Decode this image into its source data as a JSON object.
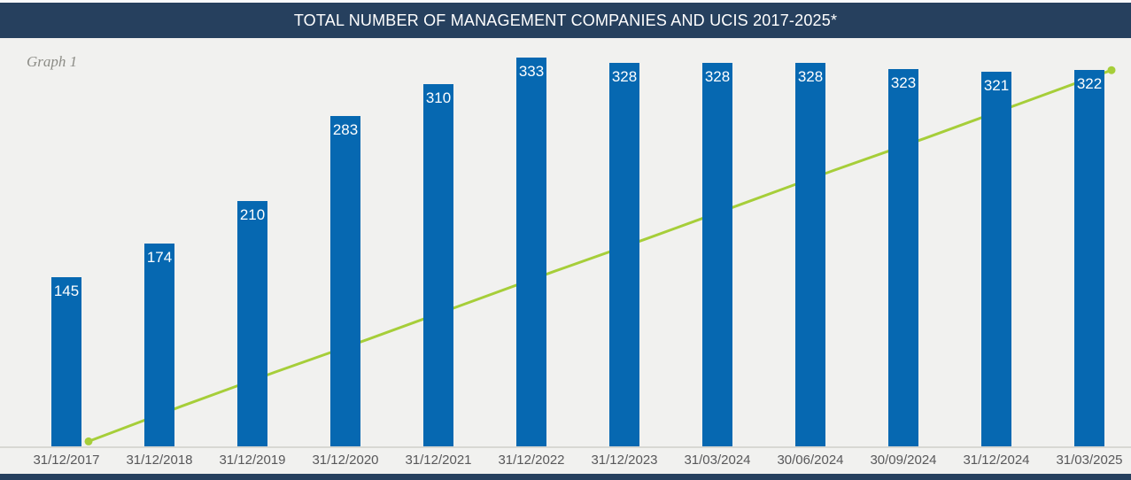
{
  "header": {
    "title": "TOTAL NUMBER OF MANAGEMENT COMPANIES AND UCIS 2017-2025*",
    "graph_label": "Graph 1"
  },
  "colors": {
    "header_bar": "#26405E",
    "footer_bar": "#26405E",
    "bar_fill": "#0668B1",
    "bar_value_text": "#FFFFFF",
    "line": "#A6CE39",
    "chart_background": "#F1F1EF",
    "axis_line": "#D8D8D3",
    "x_label_text": "#58585A",
    "graph_label_text": "#8C8C86"
  },
  "chart_data": {
    "type": "bar",
    "title": "TOTAL NUMBER OF MANAGEMENT COMPANIES AND UCIS 2017-2025*",
    "categories": [
      "31/12/2017",
      "31/12/2018",
      "31/12/2019",
      "31/12/2020",
      "31/12/2021",
      "31/12/2022",
      "31/12/2023",
      "31/03/2024",
      "30/06/2024",
      "30/09/2024",
      "31/12/2024",
      "31/03/2025"
    ],
    "series": [
      {
        "name": "bars",
        "type": "bar",
        "values": [
          145,
          174,
          210,
          283,
          310,
          333,
          328,
          328,
          328,
          323,
          321,
          322
        ],
        "data_labels": true
      },
      {
        "name": "line",
        "type": "line",
        "estimated": true,
        "values": [
          5,
          35,
          64,
          92,
          121,
          150,
          178,
          207,
          236,
          264,
          293,
          322
        ],
        "markers": "start-and-end",
        "data_labels": false
      }
    ],
    "xlabel": "",
    "ylabel": "",
    "ylim": [
      0,
      350
    ],
    "grid": false,
    "legend": "none"
  }
}
